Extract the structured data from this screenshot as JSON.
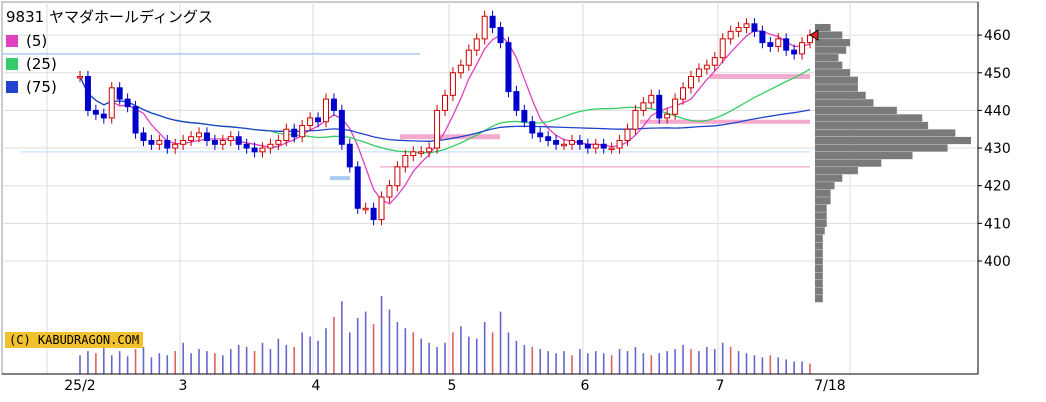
{
  "chart_data": {
    "type": "candlestick",
    "title": "9831 ヤマダホールディングス",
    "credit": "(C) KABUDRAGON.COM",
    "moving_averages": [
      {
        "name": "(5)",
        "color": "#e040c0"
      },
      {
        "name": "(25)",
        "color": "#33cc66"
      },
      {
        "name": "(75)",
        "color": "#2244cc"
      }
    ],
    "y_ticks": [
      400,
      410,
      420,
      430,
      440,
      450,
      460
    ],
    "ylim": [
      389,
      466
    ],
    "x_ticks": [
      "25/2",
      "3",
      "4",
      "5",
      "6",
      "7",
      "7/18"
    ],
    "last_price": 460,
    "horizontal_lines": [
      455,
      449,
      437,
      433,
      429,
      425,
      422
    ],
    "closes": [
      449,
      440,
      439,
      438,
      446,
      443,
      441,
      434,
      432,
      431,
      432,
      430,
      431,
      432,
      433,
      434,
      432,
      431,
      432,
      433,
      431,
      430,
      429,
      430,
      431,
      432,
      435,
      433,
      436,
      438,
      437,
      443,
      440,
      431,
      425,
      414,
      414,
      411,
      417,
      420,
      425,
      428,
      429,
      429,
      430,
      440,
      444,
      450,
      452,
      456,
      459,
      465,
      462,
      458,
      445,
      440,
      437,
      434,
      433,
      432,
      431,
      431,
      432,
      431,
      430,
      431,
      430,
      430,
      432,
      435,
      440,
      442,
      444,
      438,
      439,
      443,
      446,
      449,
      451,
      452,
      454,
      459,
      461,
      462,
      463,
      461,
      458,
      457,
      459,
      456,
      455,
      458,
      460
    ],
    "volume": [
      18,
      22,
      20,
      26,
      18,
      22,
      17,
      24,
      26,
      16,
      20,
      18,
      22,
      30,
      20,
      24,
      22,
      20,
      18,
      24,
      28,
      26,
      22,
      30,
      24,
      34,
      28,
      26,
      40,
      36,
      32,
      44,
      55,
      70,
      40,
      54,
      60,
      48,
      75,
      62,
      50,
      44,
      40,
      34,
      30,
      26,
      30,
      40,
      46,
      36,
      34,
      50,
      40,
      60,
      40,
      32,
      28,
      26,
      24,
      22,
      20,
      22,
      18,
      24,
      20,
      22,
      20,
      18,
      24,
      22,
      26,
      20,
      18,
      20,
      22,
      24,
      28,
      24,
      22,
      26,
      24,
      30,
      26,
      22,
      20,
      18,
      16,
      18,
      16,
      14,
      12,
      12,
      10
    ],
    "volume_profile": [
      [
        462,
        8
      ],
      [
        460,
        14
      ],
      [
        458,
        18
      ],
      [
        456,
        16
      ],
      [
        454,
        12
      ],
      [
        452,
        14
      ],
      [
        450,
        18
      ],
      [
        448,
        22
      ],
      [
        446,
        22
      ],
      [
        444,
        26
      ],
      [
        442,
        30
      ],
      [
        440,
        42
      ],
      [
        438,
        55
      ],
      [
        436,
        58
      ],
      [
        434,
        72
      ],
      [
        432,
        80
      ],
      [
        430,
        68
      ],
      [
        428,
        50
      ],
      [
        426,
        34
      ],
      [
        424,
        22
      ],
      [
        422,
        14
      ],
      [
        420,
        10
      ],
      [
        418,
        8
      ],
      [
        416,
        8
      ],
      [
        414,
        6
      ],
      [
        412,
        6
      ],
      [
        410,
        6
      ],
      [
        408,
        5
      ],
      [
        406,
        4
      ],
      [
        404,
        4
      ],
      [
        402,
        4
      ],
      [
        400,
        4
      ],
      [
        398,
        4
      ],
      [
        396,
        4
      ],
      [
        394,
        4
      ],
      [
        392,
        4
      ],
      [
        390,
        4
      ]
    ]
  }
}
